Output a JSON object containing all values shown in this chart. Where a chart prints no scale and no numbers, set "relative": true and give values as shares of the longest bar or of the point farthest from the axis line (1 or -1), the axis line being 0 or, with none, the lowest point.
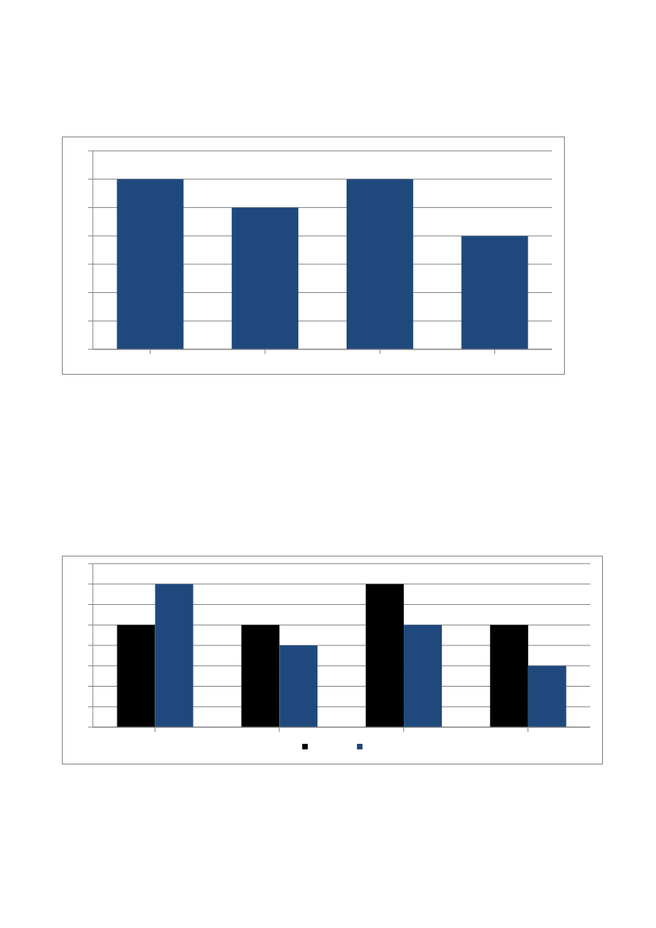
{
  "chart_data": [
    {
      "type": "bar",
      "relative": true,
      "categories": [
        null,
        null,
        null,
        null
      ],
      "values": [
        1,
        0.8333,
        1,
        0.6667
      ],
      "color": "#1f497d",
      "grid": "y"
    },
    {
      "type": "bar",
      "relative": true,
      "categories": [
        null,
        null,
        null,
        null
      ],
      "grid": "y",
      "series": [
        {
          "color": "#000000",
          "values": [
            0.714,
            0.714,
            1,
            0.714
          ]
        },
        {
          "color": "#1f497d",
          "values": [
            1,
            0.571,
            0.714,
            0.429
          ]
        }
      ]
    }
  ]
}
